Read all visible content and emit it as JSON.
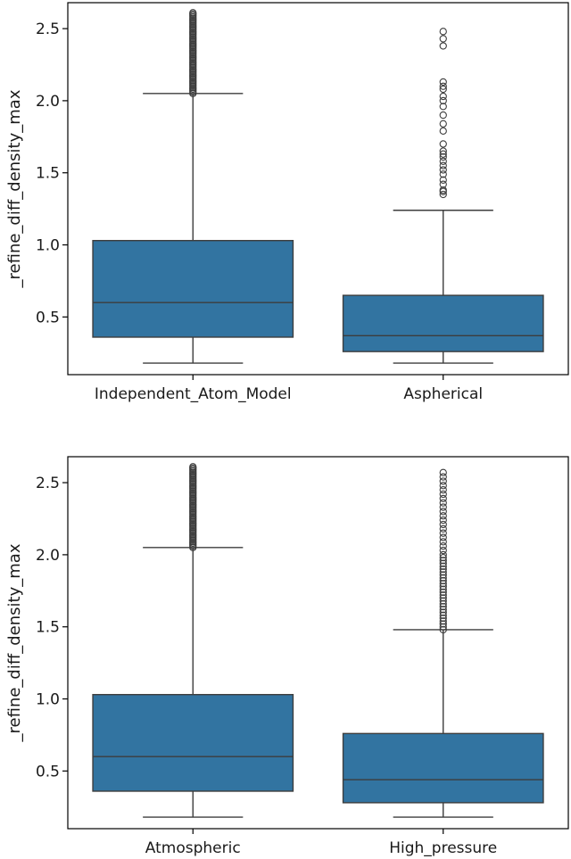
{
  "colors": {
    "box_fill": "#3274a1",
    "line": "#3d3d3d",
    "axes": "#000000",
    "background": "#ffffff"
  },
  "chart_data": [
    {
      "type": "box",
      "title": "",
      "xlabel": "",
      "ylabel": "_refine_diff_density_max",
      "ylim": [
        0.1,
        2.68
      ],
      "yticks": [
        0.5,
        1.0,
        1.5,
        2.0,
        2.5
      ],
      "ytick_labels": [
        "0.5",
        "1.0",
        "1.5",
        "2.0",
        "2.5"
      ],
      "grid": false,
      "categories": [
        "Independent_Atom_Model",
        "Aspherical"
      ],
      "boxes": [
        {
          "category": "Independent_Atom_Model",
          "whisker_low": 0.18,
          "q1": 0.36,
          "median": 0.6,
          "q3": 1.03,
          "whisker_high": 2.05,
          "outliers": [
            2.05,
            2.06,
            2.07,
            2.08,
            2.09,
            2.1,
            2.11,
            2.12,
            2.13,
            2.14,
            2.15,
            2.16,
            2.17,
            2.18,
            2.19,
            2.2,
            2.21,
            2.22,
            2.23,
            2.24,
            2.25,
            2.26,
            2.27,
            2.28,
            2.29,
            2.3,
            2.31,
            2.32,
            2.33,
            2.34,
            2.35,
            2.36,
            2.37,
            2.38,
            2.39,
            2.4,
            2.41,
            2.42,
            2.43,
            2.44,
            2.45,
            2.46,
            2.47,
            2.48,
            2.49,
            2.5,
            2.51,
            2.52,
            2.53,
            2.54,
            2.55,
            2.56,
            2.57,
            2.58,
            2.59,
            2.6,
            2.61
          ]
        },
        {
          "category": "Aspherical",
          "whisker_low": 0.18,
          "q1": 0.26,
          "median": 0.37,
          "q3": 0.65,
          "whisker_high": 1.24,
          "outliers": [
            1.35,
            1.37,
            1.38,
            1.42,
            1.45,
            1.49,
            1.52,
            1.55,
            1.58,
            1.61,
            1.63,
            1.65,
            1.7,
            1.79,
            1.84,
            1.9,
            1.96,
            2.0,
            2.03,
            2.08,
            2.1,
            2.13,
            2.38,
            2.43,
            2.48
          ]
        }
      ]
    },
    {
      "type": "box",
      "title": "",
      "xlabel": "",
      "ylabel": "_refine_diff_density_max",
      "ylim": [
        0.1,
        2.68
      ],
      "yticks": [
        0.5,
        1.0,
        1.5,
        2.0,
        2.5
      ],
      "ytick_labels": [
        "0.5",
        "1.0",
        "1.5",
        "2.0",
        "2.5"
      ],
      "grid": false,
      "categories": [
        "Atmospheric",
        "High_pressure"
      ],
      "boxes": [
        {
          "category": "Atmospheric",
          "whisker_low": 0.18,
          "q1": 0.36,
          "median": 0.6,
          "q3": 1.03,
          "whisker_high": 2.05,
          "outliers": [
            2.05,
            2.06,
            2.07,
            2.08,
            2.09,
            2.1,
            2.11,
            2.12,
            2.13,
            2.14,
            2.15,
            2.16,
            2.17,
            2.18,
            2.19,
            2.2,
            2.21,
            2.22,
            2.23,
            2.24,
            2.25,
            2.26,
            2.27,
            2.28,
            2.29,
            2.3,
            2.31,
            2.32,
            2.33,
            2.34,
            2.35,
            2.36,
            2.37,
            2.38,
            2.39,
            2.4,
            2.41,
            2.42,
            2.43,
            2.44,
            2.45,
            2.46,
            2.47,
            2.48,
            2.49,
            2.5,
            2.51,
            2.52,
            2.53,
            2.54,
            2.55,
            2.56,
            2.57,
            2.58,
            2.59,
            2.6,
            2.61
          ]
        },
        {
          "category": "High_pressure",
          "whisker_low": 0.18,
          "q1": 0.28,
          "median": 0.44,
          "q3": 0.76,
          "whisker_high": 1.48,
          "outliers": [
            1.48,
            1.5,
            1.52,
            1.54,
            1.56,
            1.58,
            1.6,
            1.62,
            1.64,
            1.66,
            1.68,
            1.7,
            1.72,
            1.74,
            1.76,
            1.78,
            1.8,
            1.82,
            1.84,
            1.86,
            1.88,
            1.9,
            1.92,
            1.94,
            1.96,
            1.98,
            2.0,
            2.03,
            2.06,
            2.09,
            2.12,
            2.15,
            2.18,
            2.21,
            2.24,
            2.27,
            2.3,
            2.33,
            2.36,
            2.39,
            2.42,
            2.45,
            2.48,
            2.51,
            2.54,
            2.57
          ]
        }
      ]
    }
  ]
}
